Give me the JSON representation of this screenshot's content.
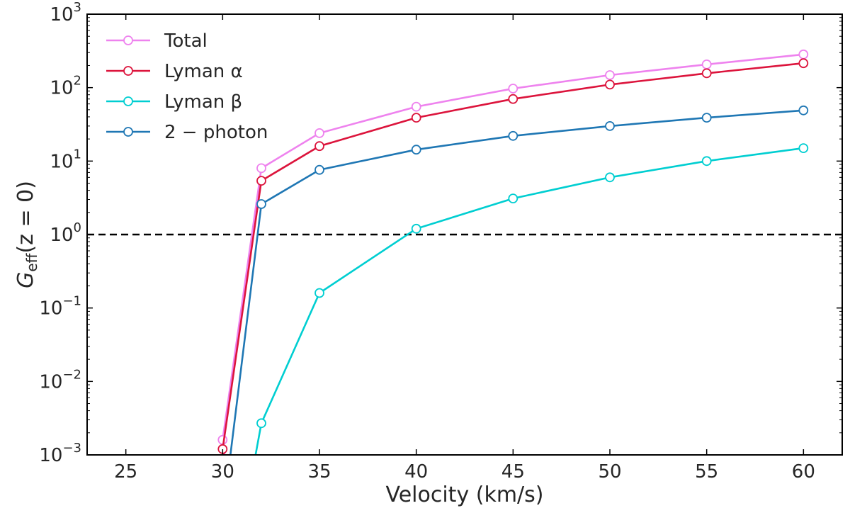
{
  "chart_data": {
    "type": "line",
    "xlabel": "Velocity (km/s)",
    "ylabel_main": "G",
    "ylabel_sub": "eff",
    "ylabel_rest": "(z = 0)",
    "xlim": [
      23,
      62
    ],
    "ylim": [
      0.001,
      1000
    ],
    "yscale": "log",
    "xticks": [
      25,
      30,
      35,
      40,
      45,
      50,
      55,
      60
    ],
    "yticks": [
      {
        "value": 0.001,
        "base": "10",
        "exp": "−3"
      },
      {
        "value": 0.01,
        "base": "10",
        "exp": "−2"
      },
      {
        "value": 0.1,
        "base": "10",
        "exp": "−1"
      },
      {
        "value": 1,
        "base": "10",
        "exp": "0"
      },
      {
        "value": 10,
        "base": "10",
        "exp": "1"
      },
      {
        "value": 100,
        "base": "10",
        "exp": "2"
      },
      {
        "value": 1000,
        "base": "10",
        "exp": "3"
      }
    ],
    "grid": false,
    "legend_position": "top-left",
    "reference_line": {
      "y": 1,
      "style": "dashed",
      "color": "#000000"
    },
    "series": [
      {
        "name": "Total",
        "color": "#ee82ee",
        "points": [
          [
            30,
            0.0016
          ],
          [
            32,
            8.0
          ],
          [
            35,
            24
          ],
          [
            40,
            55
          ],
          [
            45,
            97
          ],
          [
            50,
            148
          ],
          [
            55,
            207
          ],
          [
            60,
            283
          ]
        ],
        "line_start": [
          30.1,
          0.001
        ]
      },
      {
        "name": "Lyman α",
        "color": "#dc143c",
        "points": [
          [
            30,
            0.0012
          ],
          [
            32,
            5.4
          ],
          [
            35,
            16
          ],
          [
            40,
            39
          ],
          [
            45,
            70
          ],
          [
            50,
            110
          ],
          [
            55,
            157
          ],
          [
            60,
            215
          ]
        ],
        "line_start": [
          30.05,
          0.001
        ]
      },
      {
        "name": "Lyman β",
        "color": "#00ced1",
        "points": [
          [
            32,
            0.0027
          ],
          [
            35,
            0.16
          ],
          [
            40,
            1.2
          ],
          [
            45,
            3.1
          ],
          [
            50,
            6.0
          ],
          [
            55,
            10
          ],
          [
            60,
            15
          ]
        ],
        "line_start": [
          31.7,
          0.001
        ]
      },
      {
        "name": "2 − photon",
        "color": "#1f77b4",
        "points": [
          [
            32,
            2.6
          ],
          [
            35,
            7.6
          ],
          [
            40,
            14.3
          ],
          [
            45,
            22
          ],
          [
            50,
            30
          ],
          [
            55,
            39
          ],
          [
            60,
            49
          ]
        ],
        "line_start": [
          30.4,
          0.001
        ]
      }
    ]
  }
}
